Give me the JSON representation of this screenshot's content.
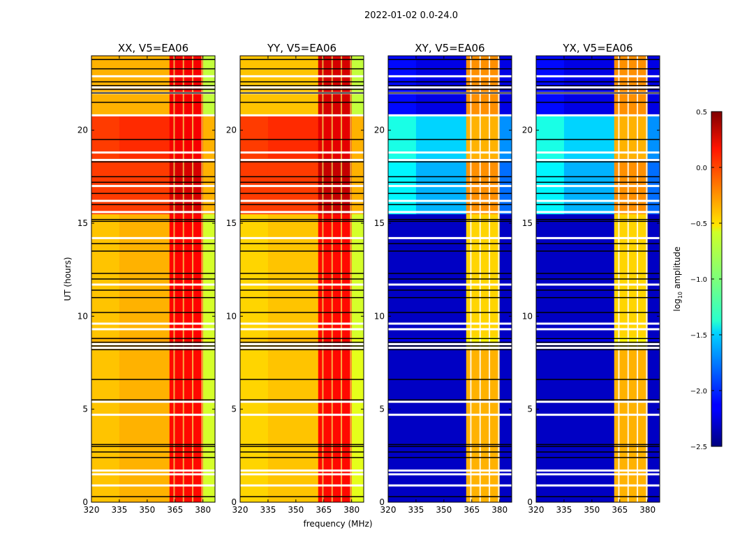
{
  "chart_data": {
    "type": "heatmap",
    "title": "2022-01-02 0.0-24.0",
    "xlabel": "frequency (MHz)",
    "ylabel": "UT (hours)",
    "xlim": [
      320,
      386.5
    ],
    "ylim": [
      0,
      24
    ],
    "xticks": [
      "320",
      "335",
      "350",
      "365",
      "380"
    ],
    "xtick_values": [
      320,
      335,
      350,
      365,
      380
    ],
    "yticks": [
      "0",
      "5",
      "10",
      "15",
      "20"
    ],
    "ytick_values": [
      0,
      5,
      10,
      15,
      20
    ],
    "freq_segments": [
      [
        320,
        335
      ],
      [
        335,
        362
      ],
      [
        362,
        380
      ],
      [
        380,
        386.5
      ]
    ],
    "rfi_stripes_mhz": [
      364.5,
      369.5,
      374.5,
      379.5
    ],
    "flagged_white_hours": [
      0.9,
      1.5,
      1.7,
      4.7,
      5.4,
      8.3,
      8.5,
      9.3,
      9.6,
      11.7,
      14.2,
      15.6,
      16.2,
      17.0,
      18.4,
      18.8,
      20.8,
      22.0,
      22.3,
      22.9
    ],
    "black_line_hours": [
      0.3,
      2.4,
      2.7,
      3.0,
      3.1,
      5.5,
      6.6,
      8.2,
      8.4,
      8.6,
      8.8,
      10.2,
      11.0,
      11.4,
      12.0,
      12.3,
      13.5,
      13.9,
      15.1,
      15.2,
      16.0,
      16.6,
      17.2,
      17.5,
      18.3,
      19.5,
      21.5,
      22.0,
      22.2,
      22.4,
      22.6,
      23.3,
      23.8
    ],
    "panels": [
      {
        "title": "XX, V5=EA06",
        "bands": [
          {
            "t": [
              0,
              8.2
            ],
            "values": [
              -0.45,
              -0.4,
              0.1,
              -0.75
            ]
          },
          {
            "t": [
              8.2,
              8.9
            ],
            "values": [
              -0.4,
              -0.35,
              0.15,
              -0.7
            ]
          },
          {
            "t": [
              8.9,
              15.5
            ],
            "values": [
              -0.45,
              -0.4,
              0.12,
              -0.75
            ]
          },
          {
            "t": [
              15.5,
              18.5
            ],
            "values": [
              -0.05,
              -0.05,
              0.25,
              -0.4
            ]
          },
          {
            "t": [
              18.5,
              20.8
            ],
            "values": [
              -0.05,
              0.0,
              0.15,
              -0.4
            ]
          },
          {
            "t": [
              20.8,
              24
            ],
            "values": [
              -0.4,
              -0.4,
              0.15,
              -0.8
            ]
          }
        ]
      },
      {
        "title": "YY, V5=EA06",
        "bands": [
          {
            "t": [
              0,
              8.2
            ],
            "values": [
              -0.5,
              -0.45,
              0.1,
              -0.7
            ]
          },
          {
            "t": [
              8.2,
              8.9
            ],
            "values": [
              -0.45,
              -0.4,
              0.15,
              -0.7
            ]
          },
          {
            "t": [
              8.9,
              15.5
            ],
            "values": [
              -0.5,
              -0.45,
              0.1,
              -0.75
            ]
          },
          {
            "t": [
              15.5,
              18.5
            ],
            "values": [
              -0.05,
              -0.05,
              0.3,
              -0.4
            ]
          },
          {
            "t": [
              18.5,
              20.8
            ],
            "values": [
              -0.05,
              0.0,
              0.2,
              -0.4
            ]
          },
          {
            "t": [
              20.8,
              24
            ],
            "values": [
              -0.45,
              -0.45,
              0.25,
              -0.8
            ]
          }
        ]
      },
      {
        "title": "XY, V5=EA06",
        "bands": [
          {
            "t": [
              0,
              8.2
            ],
            "values": [
              -2.3,
              -2.3,
              -0.4,
              -2.3
            ]
          },
          {
            "t": [
              8.2,
              8.9
            ],
            "values": [
              -2.2,
              -2.2,
              -0.6,
              -2.2
            ]
          },
          {
            "t": [
              8.9,
              15.5
            ],
            "values": [
              -2.3,
              -2.3,
              -0.5,
              -2.3
            ]
          },
          {
            "t": [
              15.5,
              18.5
            ],
            "values": [
              -1.4,
              -1.6,
              -0.3,
              -1.8
            ]
          },
          {
            "t": [
              18.5,
              20.8
            ],
            "values": [
              -1.3,
              -1.5,
              -0.4,
              -1.7
            ]
          },
          {
            "t": [
              20.8,
              24
            ],
            "values": [
              -2.1,
              -2.2,
              -0.3,
              -2.2
            ]
          }
        ]
      },
      {
        "title": "YX, V5=EA06",
        "bands": [
          {
            "t": [
              0,
              8.2
            ],
            "values": [
              -2.3,
              -2.3,
              -0.4,
              -2.3
            ]
          },
          {
            "t": [
              8.2,
              8.9
            ],
            "values": [
              -2.2,
              -2.2,
              -0.6,
              -2.2
            ]
          },
          {
            "t": [
              8.9,
              15.5
            ],
            "values": [
              -2.3,
              -2.3,
              -0.5,
              -2.3
            ]
          },
          {
            "t": [
              15.5,
              18.5
            ],
            "values": [
              -1.4,
              -1.6,
              -0.3,
              -1.8
            ]
          },
          {
            "t": [
              18.5,
              20.8
            ],
            "values": [
              -1.3,
              -1.5,
              -0.4,
              -1.7
            ]
          },
          {
            "t": [
              20.8,
              24
            ],
            "values": [
              -2.1,
              -2.2,
              -0.3,
              -2.2
            ]
          }
        ]
      }
    ],
    "colorbar": {
      "label": "log10 amplitude",
      "label_main": "log",
      "label_sub": "10",
      "label_rest": " amplitude",
      "range": [
        -2.5,
        0.5
      ],
      "ticks": [
        "0.5",
        "0.0",
        "−0.5",
        "−1.0",
        "−1.5",
        "−2.0",
        "−2.5"
      ],
      "tick_values": [
        0.5,
        0.0,
        -0.5,
        -1.0,
        -1.5,
        -2.0,
        -2.5
      ],
      "colormap": "jet"
    }
  }
}
